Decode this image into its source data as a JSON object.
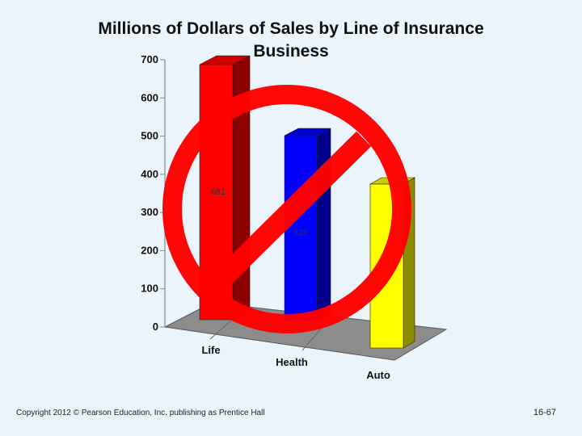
{
  "slide": {
    "footer": "Copyright 2012 © Pearson Education, Inc. publishing as Prentice Hall",
    "page_number": "16-67"
  },
  "chart_data": {
    "type": "bar",
    "title": "Millions of Dollars of Sales by Line of Insurance Business",
    "categories": [
      "Life",
      "Health",
      "Auto"
    ],
    "values": [
      681,
      520,
      390
    ],
    "data_labels": [
      "681",
      "520",
      ""
    ],
    "ylim": [
      0,
      700
    ],
    "yticks": [
      "0",
      "100",
      "200",
      "300",
      "400",
      "500",
      "600",
      "700"
    ],
    "colors": [
      "#ff0000",
      "#0000ff",
      "#ffff00"
    ],
    "style": "3d-perspective",
    "overlay": "prohibition-sign",
    "overlay_color": "#ff0000"
  }
}
